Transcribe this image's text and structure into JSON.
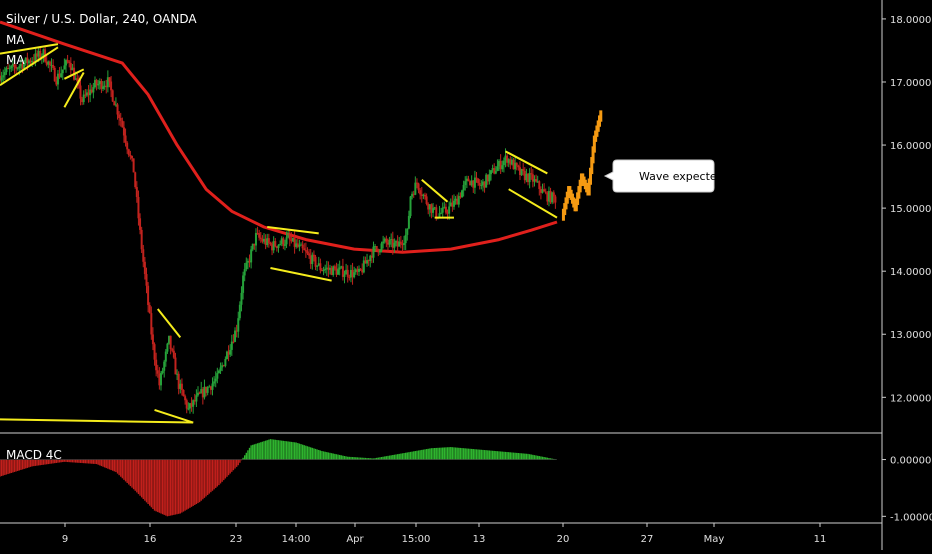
{
  "header": {
    "title": "Silver / U.S. Dollar, 240, OANDA",
    "indicator_1": "MA",
    "indicator_2": "MA"
  },
  "callout": {
    "text": "Wave expected"
  },
  "macd": {
    "label": "MACD 4C"
  },
  "colors": {
    "background": "#000000",
    "candle_up": "#26a23a",
    "candle_down": "#c2231e",
    "moving_average": "#e0201c",
    "trendlines": "#f5ec1c",
    "projection": "#f59a12",
    "macd_up": "#2fb42f",
    "macd_down": "#c2201c",
    "axis_text": "#e0e0e0"
  },
  "chart_data": [
    {
      "type": "candlestick",
      "title": "Silver / U.S. Dollar, 240, OANDA",
      "x_tick_labels": [
        "9",
        "16",
        "23",
        "14:00",
        "Apr",
        "15:00",
        "13",
        "20",
        "27",
        "May",
        "11"
      ],
      "y_tick_labels": [
        "18.00000",
        "17.00000",
        "16.00000",
        "15.00000",
        "14.00000",
        "13.00000",
        "12.00000"
      ],
      "y_ticks": [
        18,
        17,
        16,
        15,
        14,
        13,
        12
      ],
      "ylim": [
        11.45,
        18.3
      ],
      "price_path": [
        {
          "x": 0,
          "y": 17.1
        },
        {
          "x": 8,
          "y": 17.3
        },
        {
          "x": 14,
          "y": 17.45
        },
        {
          "x": 18,
          "y": 17.05
        },
        {
          "x": 22,
          "y": 17.35
        },
        {
          "x": 26,
          "y": 16.7
        },
        {
          "x": 30,
          "y": 16.95
        },
        {
          "x": 34,
          "y": 17.0
        },
        {
          "x": 38,
          "y": 16.4
        },
        {
          "x": 42,
          "y": 15.6
        },
        {
          "x": 44,
          "y": 14.6
        },
        {
          "x": 46,
          "y": 13.7
        },
        {
          "x": 48,
          "y": 12.8
        },
        {
          "x": 50,
          "y": 12.2
        },
        {
          "x": 53,
          "y": 12.9
        },
        {
          "x": 56,
          "y": 12.2
        },
        {
          "x": 59,
          "y": 11.8
        },
        {
          "x": 62,
          "y": 12.0
        },
        {
          "x": 65,
          "y": 12.15
        },
        {
          "x": 68,
          "y": 12.3
        },
        {
          "x": 71,
          "y": 12.7
        },
        {
          "x": 74,
          "y": 13.1
        },
        {
          "x": 76,
          "y": 13.9
        },
        {
          "x": 78,
          "y": 14.2
        },
        {
          "x": 80,
          "y": 14.55
        },
        {
          "x": 85,
          "y": 14.4
        },
        {
          "x": 90,
          "y": 14.5
        },
        {
          "x": 95,
          "y": 14.3
        },
        {
          "x": 100,
          "y": 14.05
        },
        {
          "x": 106,
          "y": 14.0
        },
        {
          "x": 112,
          "y": 13.95
        },
        {
          "x": 116,
          "y": 14.3
        },
        {
          "x": 120,
          "y": 14.45
        },
        {
          "x": 124,
          "y": 14.4
        },
        {
          "x": 127,
          "y": 14.6
        },
        {
          "x": 128,
          "y": 15.2
        },
        {
          "x": 130,
          "y": 15.4
        },
        {
          "x": 133,
          "y": 15.1
        },
        {
          "x": 136,
          "y": 14.9
        },
        {
          "x": 139,
          "y": 14.95
        },
        {
          "x": 142,
          "y": 15.1
        },
        {
          "x": 146,
          "y": 15.45
        },
        {
          "x": 150,
          "y": 15.35
        },
        {
          "x": 154,
          "y": 15.6
        },
        {
          "x": 158,
          "y": 15.8
        },
        {
          "x": 162,
          "y": 15.55
        },
        {
          "x": 166,
          "y": 15.45
        },
        {
          "x": 170,
          "y": 15.2
        },
        {
          "x": 173,
          "y": 15.15
        }
      ],
      "moving_average": [
        {
          "x": 0,
          "y": 17.95
        },
        {
          "x": 20,
          "y": 17.6
        },
        {
          "x": 38,
          "y": 17.3
        },
        {
          "x": 46,
          "y": 16.8
        },
        {
          "x": 55,
          "y": 16.0
        },
        {
          "x": 64,
          "y": 15.3
        },
        {
          "x": 72,
          "y": 14.95
        },
        {
          "x": 82,
          "y": 14.7
        },
        {
          "x": 95,
          "y": 14.5
        },
        {
          "x": 110,
          "y": 14.35
        },
        {
          "x": 125,
          "y": 14.3
        },
        {
          "x": 140,
          "y": 14.35
        },
        {
          "x": 155,
          "y": 14.5
        },
        {
          "x": 165,
          "y": 14.65
        },
        {
          "x": 173,
          "y": 14.78
        }
      ],
      "projection": [
        {
          "x": 175,
          "y": 14.85
        },
        {
          "x": 177,
          "y": 15.3
        },
        {
          "x": 179,
          "y": 15.0
        },
        {
          "x": 181,
          "y": 15.5
        },
        {
          "x": 183,
          "y": 15.25
        },
        {
          "x": 185,
          "y": 16.1
        },
        {
          "x": 187,
          "y": 16.5
        }
      ],
      "trendlines": [
        {
          "x1": 0,
          "y1": 16.95,
          "x2": 18,
          "y2": 17.55
        },
        {
          "x1": 0,
          "y1": 17.45,
          "x2": 18,
          "y2": 17.6
        },
        {
          "x1": 20,
          "y1": 16.6,
          "x2": 26,
          "y2": 17.15
        },
        {
          "x1": 20,
          "y1": 17.05,
          "x2": 26,
          "y2": 17.2
        },
        {
          "x1": 49,
          "y1": 13.4,
          "x2": 56,
          "y2": 12.95
        },
        {
          "x1": 48,
          "y1": 11.8,
          "x2": 60,
          "y2": 11.6
        },
        {
          "x1": 0,
          "y1": 11.65,
          "x2": 60,
          "y2": 11.6
        },
        {
          "x1": 83,
          "y1": 14.7,
          "x2": 99,
          "y2": 14.6
        },
        {
          "x1": 84,
          "y1": 14.05,
          "x2": 103,
          "y2": 13.85
        },
        {
          "x1": 131,
          "y1": 15.45,
          "x2": 139,
          "y2": 15.1
        },
        {
          "x1": 135,
          "y1": 14.85,
          "x2": 141,
          "y2": 14.85
        },
        {
          "x1": 157,
          "y1": 15.9,
          "x2": 170,
          "y2": 15.55
        },
        {
          "x1": 158,
          "y1": 15.3,
          "x2": 173,
          "y2": 14.85
        }
      ],
      "seed": 7,
      "bars_per_unit": 2
    },
    {
      "type": "bar",
      "title": "MACD 4C",
      "y_tick_labels": [
        "0.00000",
        "-1.00000"
      ],
      "y_ticks": [
        0,
        -1
      ],
      "ylim": [
        -1.1,
        0.45
      ],
      "histogram_path": [
        {
          "x": 0,
          "y": -0.3
        },
        {
          "x": 10,
          "y": -0.12
        },
        {
          "x": 20,
          "y": -0.04
        },
        {
          "x": 30,
          "y": -0.08
        },
        {
          "x": 36,
          "y": -0.22
        },
        {
          "x": 42,
          "y": -0.55
        },
        {
          "x": 48,
          "y": -0.9
        },
        {
          "x": 52,
          "y": -1.0
        },
        {
          "x": 56,
          "y": -0.95
        },
        {
          "x": 62,
          "y": -0.75
        },
        {
          "x": 68,
          "y": -0.45
        },
        {
          "x": 74,
          "y": -0.1
        },
        {
          "x": 78,
          "y": 0.25
        },
        {
          "x": 84,
          "y": 0.36
        },
        {
          "x": 92,
          "y": 0.3
        },
        {
          "x": 100,
          "y": 0.15
        },
        {
          "x": 108,
          "y": 0.05
        },
        {
          "x": 116,
          "y": 0.02
        },
        {
          "x": 124,
          "y": 0.1
        },
        {
          "x": 134,
          "y": 0.2
        },
        {
          "x": 140,
          "y": 0.22
        },
        {
          "x": 148,
          "y": 0.18
        },
        {
          "x": 156,
          "y": 0.14
        },
        {
          "x": 164,
          "y": 0.1
        },
        {
          "x": 173,
          "y": 0.0
        }
      ]
    }
  ]
}
